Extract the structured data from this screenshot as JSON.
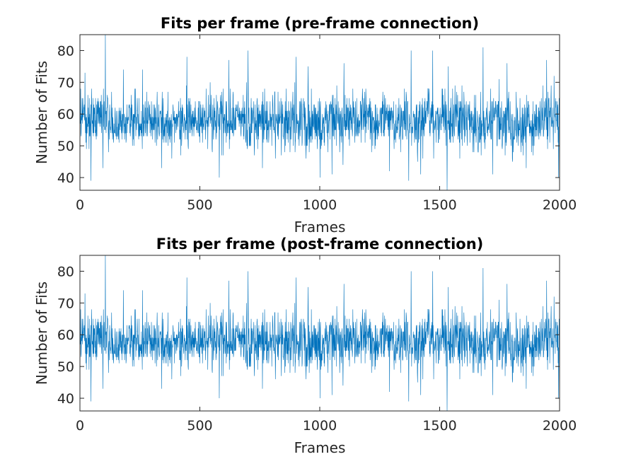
{
  "chart_data": [
    {
      "type": "line",
      "title": "Fits per frame (pre-frame connection)",
      "xlabel": "Frames",
      "ylabel": "Number of Fits",
      "xlim": [
        0,
        2000
      ],
      "ylim": [
        36,
        85
      ],
      "xticks": [
        0,
        500,
        1000,
        1500,
        2000
      ],
      "yticks": [
        40,
        50,
        60,
        70,
        80
      ],
      "grid": false,
      "color": "#0072BD",
      "n_points": 2000,
      "mean": 58,
      "typical_range": [
        42,
        74
      ],
      "anchors": [
        {
          "x": 20,
          "y": 73
        },
        {
          "x": 45,
          "y": 39
        },
        {
          "x": 95,
          "y": 43
        },
        {
          "x": 105,
          "y": 85
        },
        {
          "x": 180,
          "y": 74
        },
        {
          "x": 260,
          "y": 74
        },
        {
          "x": 340,
          "y": 43
        },
        {
          "x": 445,
          "y": 78
        },
        {
          "x": 580,
          "y": 40
        },
        {
          "x": 620,
          "y": 77
        },
        {
          "x": 700,
          "y": 80
        },
        {
          "x": 760,
          "y": 43
        },
        {
          "x": 900,
          "y": 78
        },
        {
          "x": 950,
          "y": 75
        },
        {
          "x": 1000,
          "y": 40
        },
        {
          "x": 1050,
          "y": 41
        },
        {
          "x": 1100,
          "y": 76
        },
        {
          "x": 1290,
          "y": 42
        },
        {
          "x": 1370,
          "y": 39
        },
        {
          "x": 1380,
          "y": 80
        },
        {
          "x": 1420,
          "y": 41
        },
        {
          "x": 1470,
          "y": 80
        },
        {
          "x": 1530,
          "y": 36
        },
        {
          "x": 1535,
          "y": 75
        },
        {
          "x": 1680,
          "y": 81
        },
        {
          "x": 1720,
          "y": 41
        },
        {
          "x": 1780,
          "y": 76
        },
        {
          "x": 1860,
          "y": 43
        },
        {
          "x": 1945,
          "y": 77
        },
        {
          "x": 1995,
          "y": 40
        }
      ]
    },
    {
      "type": "line",
      "title": "Fits per frame (post-frame connection)",
      "xlabel": "Frames",
      "ylabel": "Number of Fits",
      "xlim": [
        0,
        2000
      ],
      "ylim": [
        36,
        85
      ],
      "xticks": [
        0,
        500,
        1000,
        1500,
        2000
      ],
      "yticks": [
        40,
        50,
        60,
        70,
        80
      ],
      "grid": false,
      "color": "#0072BD",
      "n_points": 2000,
      "mean": 58,
      "typical_range": [
        42,
        74
      ],
      "anchors": [
        {
          "x": 20,
          "y": 73
        },
        {
          "x": 45,
          "y": 39
        },
        {
          "x": 95,
          "y": 43
        },
        {
          "x": 105,
          "y": 85
        },
        {
          "x": 180,
          "y": 74
        },
        {
          "x": 260,
          "y": 74
        },
        {
          "x": 340,
          "y": 43
        },
        {
          "x": 445,
          "y": 78
        },
        {
          "x": 580,
          "y": 40
        },
        {
          "x": 620,
          "y": 77
        },
        {
          "x": 700,
          "y": 80
        },
        {
          "x": 760,
          "y": 43
        },
        {
          "x": 900,
          "y": 78
        },
        {
          "x": 950,
          "y": 75
        },
        {
          "x": 1000,
          "y": 40
        },
        {
          "x": 1050,
          "y": 41
        },
        {
          "x": 1100,
          "y": 76
        },
        {
          "x": 1290,
          "y": 42
        },
        {
          "x": 1370,
          "y": 39
        },
        {
          "x": 1380,
          "y": 80
        },
        {
          "x": 1420,
          "y": 41
        },
        {
          "x": 1470,
          "y": 80
        },
        {
          "x": 1530,
          "y": 36
        },
        {
          "x": 1535,
          "y": 75
        },
        {
          "x": 1680,
          "y": 81
        },
        {
          "x": 1720,
          "y": 41
        },
        {
          "x": 1780,
          "y": 76
        },
        {
          "x": 1860,
          "y": 43
        },
        {
          "x": 1945,
          "y": 77
        },
        {
          "x": 1995,
          "y": 40
        }
      ]
    }
  ]
}
